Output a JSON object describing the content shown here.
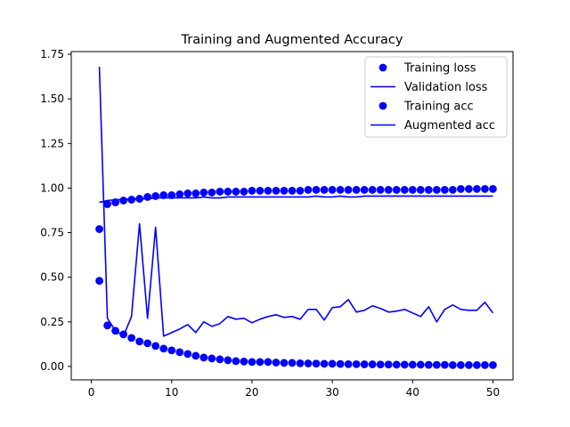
{
  "chart_data": {
    "type": "line",
    "title": "Training and Augmented Accuracy",
    "xlabel": "",
    "ylabel": "",
    "xlim": [
      -2.5,
      52.5
    ],
    "ylim": [
      -0.075,
      1.765
    ],
    "x_ticks": [
      0,
      10,
      20,
      30,
      40,
      50
    ],
    "x_tick_labels": [
      "0",
      "10",
      "20",
      "30",
      "40",
      "50"
    ],
    "y_ticks": [
      0.0,
      0.25,
      0.5,
      0.75,
      1.0,
      1.25,
      1.5,
      1.75
    ],
    "y_tick_labels": [
      "0.00",
      "0.25",
      "0.50",
      "0.75",
      "1.00",
      "1.25",
      "1.50",
      "1.75"
    ],
    "grid": false,
    "legend_position": "top-right",
    "x": [
      1,
      2,
      3,
      4,
      5,
      6,
      7,
      8,
      9,
      10,
      11,
      12,
      13,
      14,
      15,
      16,
      17,
      18,
      19,
      20,
      21,
      22,
      23,
      24,
      25,
      26,
      27,
      28,
      29,
      30,
      31,
      32,
      33,
      34,
      35,
      36,
      37,
      38,
      39,
      40,
      41,
      42,
      43,
      44,
      45,
      46,
      47,
      48,
      49,
      50
    ],
    "series": [
      {
        "name": "Training loss",
        "style": "markers",
        "color": "#0000ff",
        "values": [
          0.48,
          0.23,
          0.2,
          0.18,
          0.16,
          0.14,
          0.13,
          0.115,
          0.1,
          0.09,
          0.08,
          0.07,
          0.06,
          0.05,
          0.045,
          0.04,
          0.035,
          0.03,
          0.028,
          0.025,
          0.025,
          0.025,
          0.022,
          0.02,
          0.02,
          0.018,
          0.017,
          0.016,
          0.015,
          0.015,
          0.014,
          0.013,
          0.013,
          0.012,
          0.012,
          0.011,
          0.011,
          0.01,
          0.01,
          0.01,
          0.01,
          0.009,
          0.009,
          0.009,
          0.008,
          0.008,
          0.008,
          0.008,
          0.008,
          0.008
        ]
      },
      {
        "name": "Validation loss",
        "style": "line",
        "color": "#0000ff",
        "values": [
          1.68,
          0.27,
          0.2,
          0.17,
          0.28,
          0.8,
          0.27,
          0.78,
          0.17,
          0.19,
          0.21,
          0.235,
          0.19,
          0.25,
          0.225,
          0.24,
          0.28,
          0.265,
          0.27,
          0.245,
          0.265,
          0.28,
          0.29,
          0.275,
          0.28,
          0.265,
          0.32,
          0.32,
          0.26,
          0.33,
          0.335,
          0.375,
          0.305,
          0.315,
          0.34,
          0.325,
          0.305,
          0.31,
          0.32,
          0.3,
          0.28,
          0.335,
          0.25,
          0.32,
          0.345,
          0.32,
          0.315,
          0.315,
          0.36,
          0.3
        ]
      },
      {
        "name": "Training acc",
        "style": "markers",
        "color": "#0000ff",
        "values": [
          0.77,
          0.91,
          0.92,
          0.93,
          0.935,
          0.94,
          0.95,
          0.955,
          0.96,
          0.96,
          0.965,
          0.97,
          0.97,
          0.975,
          0.975,
          0.98,
          0.98,
          0.98,
          0.98,
          0.985,
          0.985,
          0.985,
          0.985,
          0.985,
          0.985,
          0.985,
          0.99,
          0.99,
          0.99,
          0.99,
          0.99,
          0.99,
          0.99,
          0.99,
          0.99,
          0.99,
          0.99,
          0.99,
          0.99,
          0.99,
          0.99,
          0.99,
          0.99,
          0.99,
          0.99,
          0.995,
          0.995,
          0.995,
          0.995,
          0.995
        ]
      },
      {
        "name": "Augmented acc",
        "style": "line",
        "color": "#0000ff",
        "values": [
          0.92,
          0.93,
          0.935,
          0.935,
          0.94,
          0.94,
          0.94,
          0.945,
          0.945,
          0.945,
          0.945,
          0.945,
          0.945,
          0.95,
          0.945,
          0.945,
          0.95,
          0.95,
          0.95,
          0.95,
          0.95,
          0.95,
          0.95,
          0.95,
          0.95,
          0.95,
          0.95,
          0.955,
          0.95,
          0.95,
          0.955,
          0.95,
          0.95,
          0.955,
          0.955,
          0.955,
          0.955,
          0.955,
          0.955,
          0.955,
          0.955,
          0.955,
          0.955,
          0.955,
          0.955,
          0.955,
          0.955,
          0.955,
          0.955,
          0.955
        ]
      }
    ]
  }
}
